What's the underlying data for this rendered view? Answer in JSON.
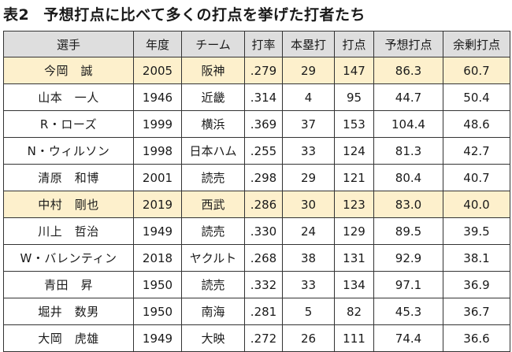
{
  "title": {
    "label": "表2",
    "text": "予想打点に比べて多くの打点を挙げた打者たち"
  },
  "headers": [
    "選手",
    "年度",
    "チーム",
    "打率",
    "本塁打",
    "打点",
    "予想打点",
    "余剰打点"
  ],
  "highlight_color": "#fdf0cc",
  "header_color": "#dedede",
  "rows": [
    {
      "name": "今岡　誠",
      "year": "2005",
      "team": "阪神",
      "avg": ".279",
      "hr": "29",
      "rbi": "147",
      "pred": "86.3",
      "surplus": "60.7",
      "highlight": true
    },
    {
      "name": "山本　一人",
      "year": "1946",
      "team": "近畿",
      "avg": ".314",
      "hr": "4",
      "rbi": "95",
      "pred": "44.7",
      "surplus": "50.4",
      "highlight": false
    },
    {
      "name": "R・ローズ",
      "year": "1999",
      "team": "横浜",
      "avg": ".369",
      "hr": "37",
      "rbi": "153",
      "pred": "104.4",
      "surplus": "48.6",
      "highlight": false
    },
    {
      "name": "N・ウィルソン",
      "year": "1998",
      "team": "日本ハム",
      "avg": ".255",
      "hr": "33",
      "rbi": "124",
      "pred": "81.3",
      "surplus": "42.7",
      "highlight": false
    },
    {
      "name": "清原　和博",
      "year": "2001",
      "team": "読売",
      "avg": ".298",
      "hr": "29",
      "rbi": "121",
      "pred": "80.4",
      "surplus": "40.7",
      "highlight": false
    },
    {
      "name": "中村　剛也",
      "year": "2019",
      "team": "西武",
      "avg": ".286",
      "hr": "30",
      "rbi": "123",
      "pred": "83.0",
      "surplus": "40.0",
      "highlight": true
    },
    {
      "name": "川上　哲治",
      "year": "1949",
      "team": "読売",
      "avg": ".330",
      "hr": "24",
      "rbi": "129",
      "pred": "89.5",
      "surplus": "39.5",
      "highlight": false
    },
    {
      "name": "W・バレンティン",
      "year": "2018",
      "team": "ヤクルト",
      "avg": ".268",
      "hr": "38",
      "rbi": "131",
      "pred": "92.9",
      "surplus": "38.1",
      "highlight": false
    },
    {
      "name": "青田　昇",
      "year": "1950",
      "team": "読売",
      "avg": ".332",
      "hr": "33",
      "rbi": "134",
      "pred": "97.1",
      "surplus": "36.9",
      "highlight": false
    },
    {
      "name": "堀井　数男",
      "year": "1950",
      "team": "南海",
      "avg": ".281",
      "hr": "5",
      "rbi": "82",
      "pred": "45.3",
      "surplus": "36.7",
      "highlight": false
    },
    {
      "name": "大岡　虎雄",
      "year": "1949",
      "team": "大映",
      "avg": ".272",
      "hr": "26",
      "rbi": "111",
      "pred": "74.4",
      "surplus": "36.6",
      "highlight": false
    }
  ]
}
